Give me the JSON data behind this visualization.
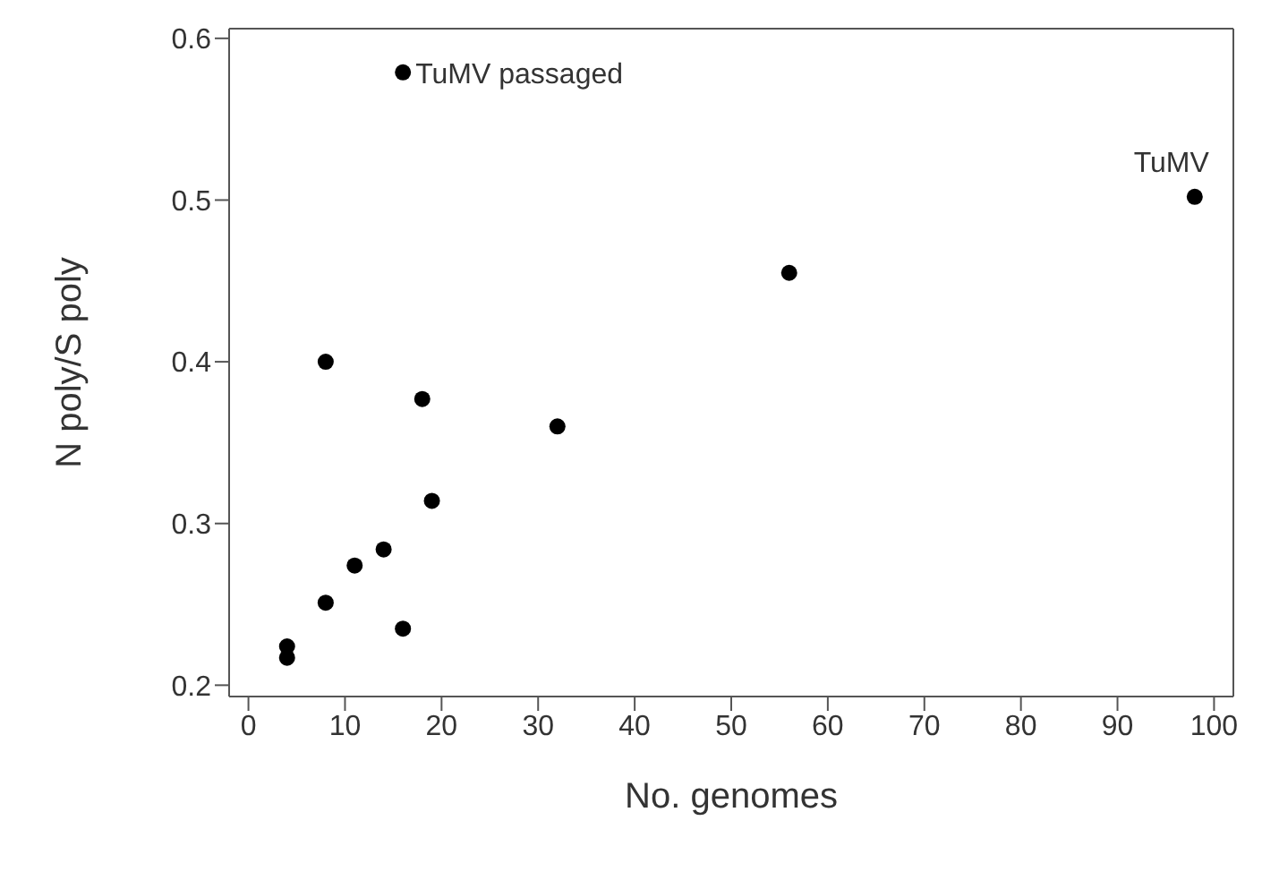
{
  "chart_data": {
    "type": "scatter",
    "xlabel": "No. genomes",
    "ylabel": "N poly/S poly",
    "x": [
      4,
      4,
      8,
      8,
      11,
      14,
      16,
      16,
      18,
      19,
      32,
      56,
      98
    ],
    "values": [
      0.224,
      0.217,
      0.251,
      0.4,
      0.274,
      0.284,
      0.235,
      0.579,
      0.377,
      0.314,
      0.36,
      0.455,
      0.502
    ],
    "color": "#000000",
    "marker": "circle",
    "xlim": [
      -2,
      102
    ],
    "xticks": [
      0,
      10,
      20,
      30,
      40,
      50,
      60,
      70,
      80,
      90,
      100
    ],
    "ylim": [
      0.193,
      0.606
    ],
    "yticks": [
      0.2,
      0.3,
      0.4,
      0.5,
      0.6
    ],
    "annotations": [
      {
        "text": "TuMV passaged",
        "x": 16,
        "y": 0.579
      },
      {
        "text": "TuMV",
        "x": 98,
        "y": 0.502
      }
    ]
  }
}
